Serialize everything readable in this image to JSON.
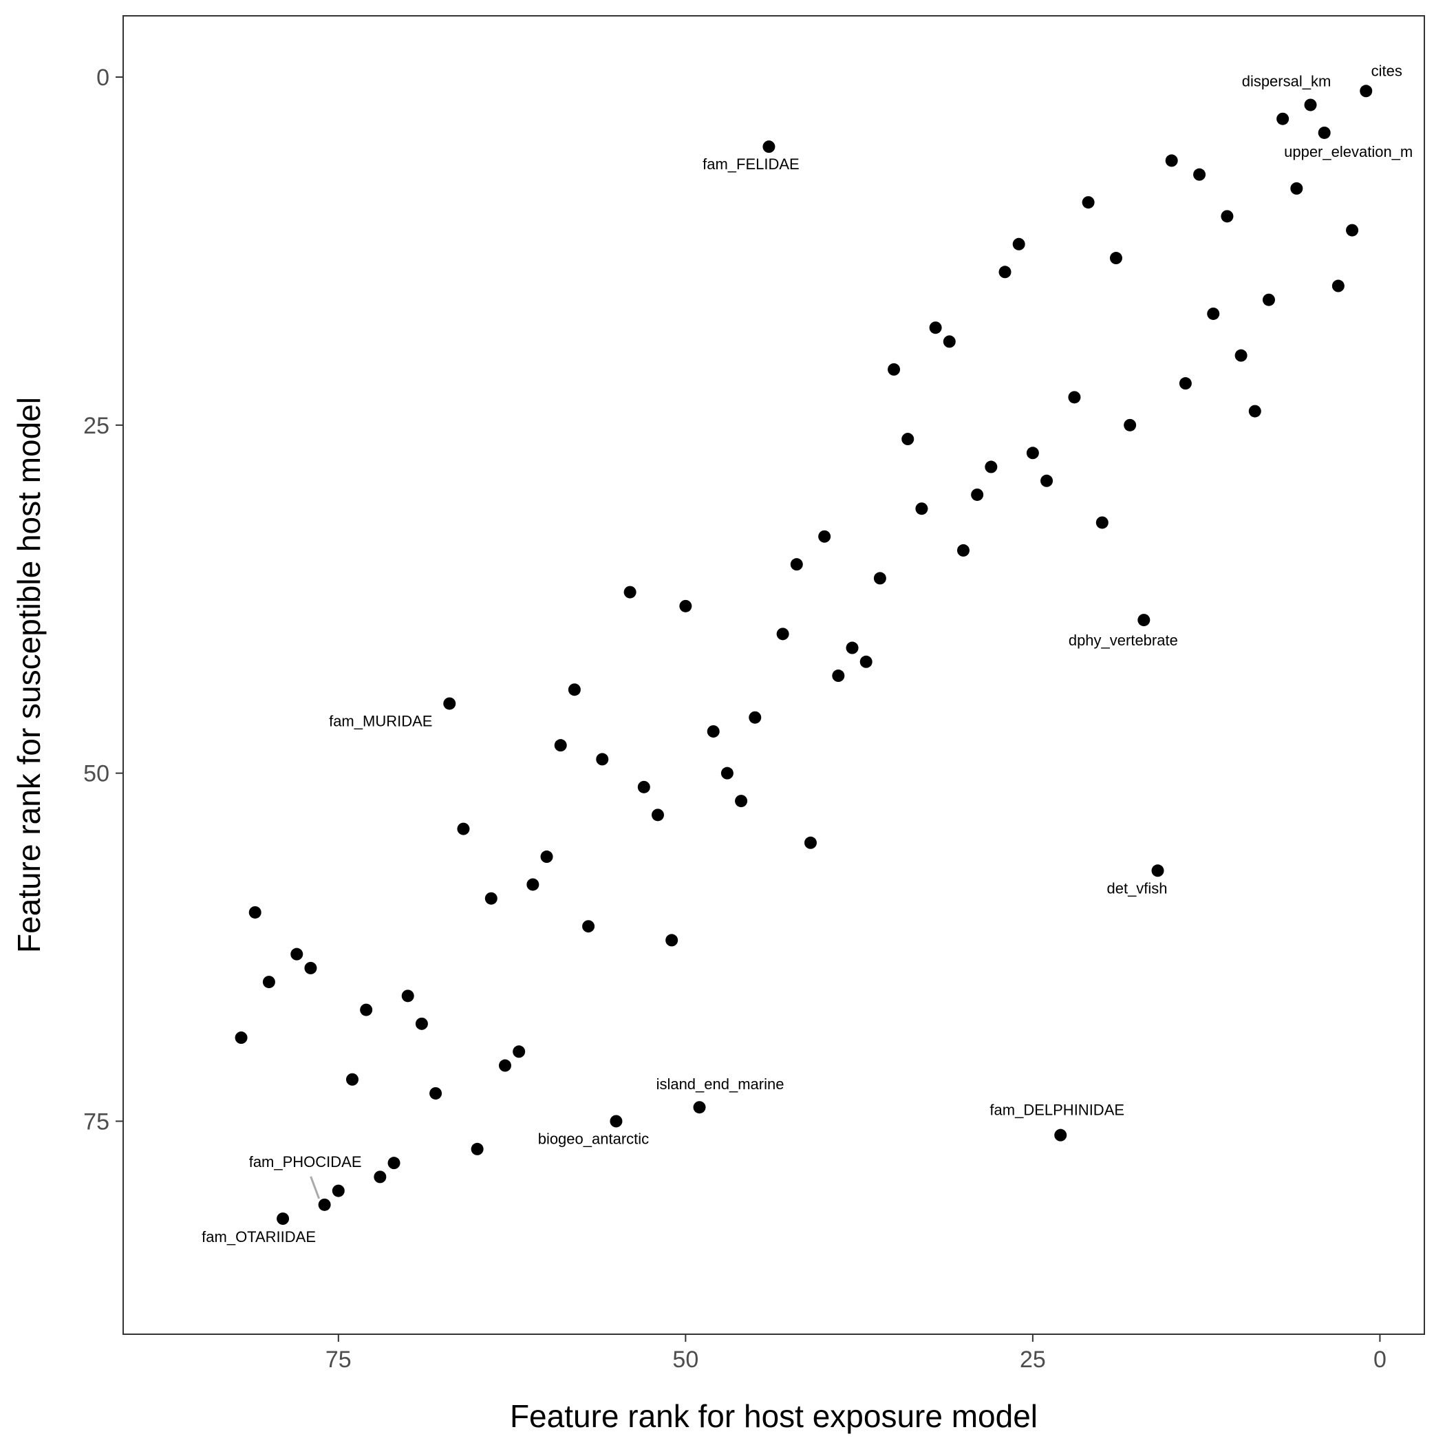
{
  "chart_data": {
    "type": "scatter",
    "title": "",
    "xlabel": "Feature rank for host exposure model",
    "ylabel": "Feature rank for susceptible host model",
    "x_reversed": true,
    "y_reversed": true,
    "xlim": [
      90.5,
      -3.2
    ],
    "ylim": [
      -4.4,
      90.3
    ],
    "x_ticks": [
      75,
      50,
      25,
      0
    ],
    "y_ticks": [
      0,
      25,
      50,
      75
    ],
    "grid": false,
    "legend": "none",
    "point_color": "#000000",
    "frame_color": "#333333",
    "leader_color": "#aaaaaa",
    "points": [
      {
        "x": 1,
        "y": 1,
        "label": "cites"
      },
      {
        "x": 5,
        "y": 2,
        "label": "dispersal_km"
      },
      {
        "x": 7,
        "y": 3
      },
      {
        "x": 4,
        "y": 4,
        "label": "upper_elevation_m"
      },
      {
        "x": 44,
        "y": 5,
        "label": "fam_FELIDAE"
      },
      {
        "x": 15,
        "y": 6
      },
      {
        "x": 13,
        "y": 7
      },
      {
        "x": 6,
        "y": 8
      },
      {
        "x": 21,
        "y": 9
      },
      {
        "x": 11,
        "y": 10
      },
      {
        "x": 2,
        "y": 11
      },
      {
        "x": 26,
        "y": 12
      },
      {
        "x": 19,
        "y": 13
      },
      {
        "x": 27,
        "y": 14
      },
      {
        "x": 3,
        "y": 15
      },
      {
        "x": 8,
        "y": 16
      },
      {
        "x": 12,
        "y": 17
      },
      {
        "x": 32,
        "y": 18
      },
      {
        "x": 31,
        "y": 19
      },
      {
        "x": 10,
        "y": 20
      },
      {
        "x": 35,
        "y": 21
      },
      {
        "x": 14,
        "y": 22
      },
      {
        "x": 22,
        "y": 23
      },
      {
        "x": 9,
        "y": 24
      },
      {
        "x": 18,
        "y": 25
      },
      {
        "x": 34,
        "y": 26
      },
      {
        "x": 25,
        "y": 27
      },
      {
        "x": 28,
        "y": 28
      },
      {
        "x": 24,
        "y": 29
      },
      {
        "x": 29,
        "y": 30
      },
      {
        "x": 33,
        "y": 31
      },
      {
        "x": 20,
        "y": 32
      },
      {
        "x": 40,
        "y": 33
      },
      {
        "x": 30,
        "y": 34
      },
      {
        "x": 42,
        "y": 35
      },
      {
        "x": 36,
        "y": 36
      },
      {
        "x": 54,
        "y": 37
      },
      {
        "x": 50,
        "y": 38
      },
      {
        "x": 17,
        "y": 39,
        "label": "dphy_vertebrate"
      },
      {
        "x": 43,
        "y": 40
      },
      {
        "x": 38,
        "y": 41
      },
      {
        "x": 37,
        "y": 42
      },
      {
        "x": 39,
        "y": 43
      },
      {
        "x": 58,
        "y": 44
      },
      {
        "x": 67,
        "y": 45,
        "label": "fam_MURIDAE"
      },
      {
        "x": 45,
        "y": 46
      },
      {
        "x": 48,
        "y": 47
      },
      {
        "x": 59,
        "y": 48
      },
      {
        "x": 56,
        "y": 49
      },
      {
        "x": 47,
        "y": 50
      },
      {
        "x": 53,
        "y": 51
      },
      {
        "x": 46,
        "y": 52
      },
      {
        "x": 52,
        "y": 53
      },
      {
        "x": 66,
        "y": 54
      },
      {
        "x": 41,
        "y": 55
      },
      {
        "x": 60,
        "y": 56
      },
      {
        "x": 16,
        "y": 57,
        "label": "det_vfish"
      },
      {
        "x": 61,
        "y": 58
      },
      {
        "x": 64,
        "y": 59
      },
      {
        "x": 81,
        "y": 60
      },
      {
        "x": 57,
        "y": 61
      },
      {
        "x": 51,
        "y": 62
      },
      {
        "x": 78,
        "y": 63
      },
      {
        "x": 77,
        "y": 64
      },
      {
        "x": 80,
        "y": 65
      },
      {
        "x": 70,
        "y": 66
      },
      {
        "x": 73,
        "y": 67
      },
      {
        "x": 69,
        "y": 68
      },
      {
        "x": 82,
        "y": 69
      },
      {
        "x": 62,
        "y": 70
      },
      {
        "x": 63,
        "y": 71
      },
      {
        "x": 74,
        "y": 72
      },
      {
        "x": 68,
        "y": 73
      },
      {
        "x": 49,
        "y": 74,
        "label": "island_end_marine"
      },
      {
        "x": 55,
        "y": 75,
        "label": "biogeo_antarctic"
      },
      {
        "x": 23,
        "y": 76,
        "label": "fam_DELPHINIDAE"
      },
      {
        "x": 65,
        "y": 77
      },
      {
        "x": 71,
        "y": 78
      },
      {
        "x": 72,
        "y": 79
      },
      {
        "x": 75,
        "y": 80
      },
      {
        "x": 76,
        "y": 81,
        "label": "fam_PHOCIDAE"
      },
      {
        "x": 79,
        "y": 82,
        "label": "fam_OTARIIDAE"
      }
    ]
  }
}
